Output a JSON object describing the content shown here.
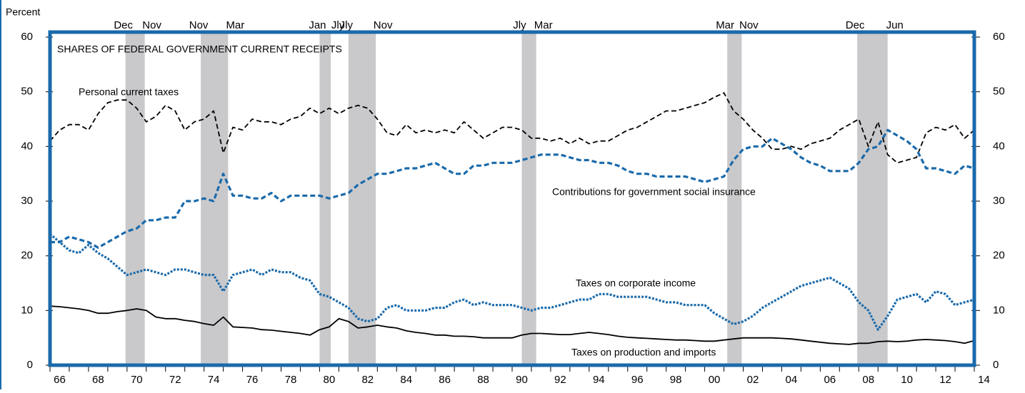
{
  "chart_data": {
    "type": "line",
    "y_label": "Percent",
    "title": "SHARES OF FEDERAL GOVERNMENT CURRENT RECEIPTS",
    "xlim": [
      1966,
      2014
    ],
    "xticks": [
      1966,
      1967,
      1968,
      1969,
      1970,
      1971,
      1972,
      1973,
      1974,
      1975,
      1976,
      1977,
      1978,
      1979,
      1980,
      1981,
      1982,
      1983,
      1984,
      1985,
      1986,
      1987,
      1988,
      1989,
      1990,
      1991,
      1992,
      1993,
      1994,
      1995,
      1996,
      1997,
      1998,
      1999,
      2000,
      2001,
      2002,
      2003,
      2004,
      2005,
      2006,
      2007,
      2008,
      2009,
      2010,
      2011,
      2012,
      2013,
      2014
    ],
    "xtick_labels": [
      {
        "value": 1966.5,
        "label": "66"
      },
      {
        "value": 1968.5,
        "label": "68"
      },
      {
        "value": 1970.5,
        "label": "70"
      },
      {
        "value": 1972.5,
        "label": "72"
      },
      {
        "value": 1974.5,
        "label": "74"
      },
      {
        "value": 1976.5,
        "label": "76"
      },
      {
        "value": 1978.5,
        "label": "78"
      },
      {
        "value": 1980.5,
        "label": "80"
      },
      {
        "value": 1982.5,
        "label": "82"
      },
      {
        "value": 1984.5,
        "label": "84"
      },
      {
        "value": 1986.5,
        "label": "86"
      },
      {
        "value": 1988.5,
        "label": "88"
      },
      {
        "value": 1990.5,
        "label": "90"
      },
      {
        "value": 1992.5,
        "label": "92"
      },
      {
        "value": 1994.5,
        "label": "94"
      },
      {
        "value": 1996.5,
        "label": "96"
      },
      {
        "value": 1998.5,
        "label": "98"
      },
      {
        "value": 2000.5,
        "label": "00"
      },
      {
        "value": 2002.5,
        "label": "02"
      },
      {
        "value": 2004.5,
        "label": "04"
      },
      {
        "value": 2006.5,
        "label": "06"
      },
      {
        "value": 2008.5,
        "label": "08"
      },
      {
        "value": 2010.5,
        "label": "10"
      },
      {
        "value": 2012.5,
        "label": "12"
      },
      {
        "value": 2014.5,
        "label": "14"
      }
    ],
    "ylim": [
      0,
      60
    ],
    "yticks": [
      0,
      10,
      20,
      30,
      40,
      50,
      60
    ],
    "recessions": [
      {
        "start": 1969.92,
        "end": 1970.92,
        "start_label": "Dec",
        "end_label": "Nov"
      },
      {
        "start": 1973.83,
        "end": 1975.25,
        "start_label": "Nov",
        "end_label": "Mar"
      },
      {
        "start": 1980.0,
        "end": 1980.58,
        "start_label": "Jan",
        "end_label": "Jly"
      },
      {
        "start": 1981.5,
        "end": 1982.92,
        "start_label": "Jly",
        "end_label": "Nov"
      },
      {
        "start": 1990.5,
        "end": 1991.25,
        "start_label": "Jly",
        "end_label": "Mar"
      },
      {
        "start": 2001.17,
        "end": 2001.92,
        "start_label": "Mar",
        "end_label": "Nov"
      },
      {
        "start": 2007.92,
        "end": 2009.5,
        "start_label": "Dec",
        "end_label": "Jun"
      }
    ],
    "recession_color": "#c9c9cb",
    "x": [
      1966,
      1966.5,
      1967,
      1967.5,
      1968,
      1968.5,
      1969,
      1969.5,
      1970,
      1970.5,
      1971,
      1971.5,
      1972,
      1972.5,
      1973,
      1973.5,
      1974,
      1974.5,
      1975,
      1975.5,
      1976,
      1976.5,
      1977,
      1977.5,
      1978,
      1978.5,
      1979,
      1979.5,
      1980,
      1980.5,
      1981,
      1981.5,
      1982,
      1982.5,
      1983,
      1983.5,
      1984,
      1984.5,
      1985,
      1985.5,
      1986,
      1986.5,
      1987,
      1987.5,
      1988,
      1988.5,
      1989,
      1989.5,
      1990,
      1990.5,
      1991,
      1991.5,
      1992,
      1992.5,
      1993,
      1993.5,
      1994,
      1994.5,
      1995,
      1995.5,
      1996,
      1996.5,
      1997,
      1997.5,
      1998,
      1998.5,
      1999,
      1999.5,
      2000,
      2000.5,
      2001,
      2001.5,
      2002,
      2002.5,
      2003,
      2003.5,
      2004,
      2004.5,
      2005,
      2005.5,
      2006,
      2006.5,
      2007,
      2007.5,
      2008,
      2008.5,
      2009,
      2009.5,
      2010,
      2010.5,
      2011,
      2011.5,
      2012,
      2012.5,
      2013,
      2013.5,
      2014
    ],
    "series": [
      {
        "name": "Personal current taxes",
        "color": "#000000",
        "dash": "dashed",
        "values": [
          41,
          43,
          44,
          44,
          43,
          46,
          48,
          48.5,
          48.5,
          47,
          44.5,
          45.5,
          47.5,
          46.5,
          43,
          44.5,
          45,
          46.5,
          38.8,
          43.5,
          43,
          45,
          44.5,
          44.5,
          44,
          45,
          45.5,
          47,
          46,
          47,
          46,
          47,
          47.5,
          47,
          45,
          42.5,
          42,
          44,
          42.5,
          43,
          42.5,
          43,
          42.5,
          44.5,
          43,
          41.5,
          42.5,
          43.5,
          43.5,
          43,
          41.5,
          41.5,
          41,
          41.5,
          40.5,
          41.5,
          40.5,
          41,
          41,
          42,
          43,
          43.5,
          44.5,
          45.5,
          46.5,
          46.5,
          47,
          47.5,
          48,
          49,
          49.8,
          46.5,
          45,
          43,
          41.5,
          39.5,
          39.5,
          40,
          39.5,
          40.5,
          41,
          41.5,
          43,
          44,
          45,
          40,
          44.5,
          38.5,
          37,
          37.5,
          38,
          42.5,
          43.5,
          43,
          44,
          41.5,
          43
        ]
      },
      {
        "name": "Contributions for government social insurance",
        "color": "#1a6aab",
        "dash": "dashed",
        "values": [
          22.5,
          22.5,
          23.5,
          23,
          22.5,
          21.5,
          22.5,
          23.5,
          24.5,
          25,
          26.5,
          26.5,
          27,
          27,
          30,
          30,
          30.5,
          30,
          35,
          31,
          31,
          30.5,
          30.5,
          31.5,
          30,
          31,
          31,
          31,
          31,
          30.5,
          31,
          31.5,
          33,
          34,
          35,
          35,
          35.5,
          36,
          36,
          36.5,
          37,
          36,
          35,
          35,
          36.5,
          36.5,
          37,
          37,
          37,
          37.5,
          38,
          38.5,
          38.5,
          38.5,
          38,
          37.5,
          37.5,
          37,
          37,
          36.5,
          35.5,
          35,
          35,
          34.5,
          34.5,
          34.5,
          34.5,
          34,
          33.5,
          34,
          34.5,
          37.5,
          39.5,
          40,
          40,
          41.5,
          40.5,
          39.5,
          38,
          37,
          36.5,
          35.5,
          35.5,
          35.5,
          37,
          39.5,
          40,
          43,
          42,
          41,
          39.5,
          36,
          36,
          35.5,
          35,
          36.5,
          36
        ]
      },
      {
        "name": "Taxes on corporate income",
        "color": "#1a6aab",
        "dash": "dotted",
        "values": [
          24,
          22.5,
          21,
          20.5,
          22,
          20.5,
          19.5,
          18,
          16.5,
          17,
          17.5,
          17,
          16.5,
          17.5,
          17.5,
          17,
          16.5,
          16.5,
          13.5,
          16.5,
          17,
          17.5,
          16.5,
          17.5,
          17,
          17,
          16,
          15.5,
          13,
          12.5,
          11.5,
          10.5,
          8.5,
          8,
          8.5,
          10.5,
          11,
          10,
          10,
          10,
          10.5,
          10.5,
          11.5,
          12,
          11,
          11.5,
          11,
          11,
          11,
          10.5,
          10,
          10.5,
          10.5,
          11,
          11.5,
          12,
          12,
          13,
          13,
          12.5,
          12.5,
          12.5,
          12.5,
          12,
          11.5,
          11.5,
          11,
          11,
          11,
          9.5,
          8.5,
          7.5,
          8,
          9,
          10.5,
          11.5,
          12.5,
          13.5,
          14.5,
          15,
          15.5,
          16,
          15,
          14,
          11.5,
          10,
          6.5,
          9,
          12,
          12.5,
          13,
          11.5,
          13.5,
          13,
          11,
          11.5,
          12
        ]
      },
      {
        "name": "Taxes on production and imports",
        "color": "#000000",
        "dash": "solid",
        "values": [
          10.8,
          10.7,
          10.5,
          10.3,
          10,
          9.5,
          9.5,
          9.8,
          10,
          10.3,
          10,
          8.8,
          8.5,
          8.5,
          8.2,
          8,
          7.6,
          7.3,
          8.8,
          7,
          6.9,
          6.8,
          6.5,
          6.4,
          6.2,
          6,
          5.8,
          5.5,
          6.5,
          7,
          8.5,
          8,
          6.8,
          7,
          7.3,
          7,
          6.8,
          6.3,
          6,
          5.8,
          5.5,
          5.5,
          5.3,
          5.3,
          5.2,
          5,
          5,
          5,
          5,
          5.5,
          5.8,
          5.8,
          5.7,
          5.6,
          5.6,
          5.8,
          6,
          5.8,
          5.6,
          5.3,
          5.1,
          5,
          4.9,
          4.8,
          4.7,
          4.6,
          4.6,
          4.5,
          4.4,
          4.4,
          4.6,
          4.8,
          5,
          5,
          5,
          5,
          4.9,
          4.8,
          4.6,
          4.4,
          4.2,
          4,
          3.9,
          3.8,
          4,
          4,
          4.3,
          4.4,
          4.3,
          4.4,
          4.6,
          4.7,
          4.6,
          4.5,
          4.3,
          4,
          4.5
        ]
      }
    ],
    "frame_color": "#1a6aab"
  }
}
